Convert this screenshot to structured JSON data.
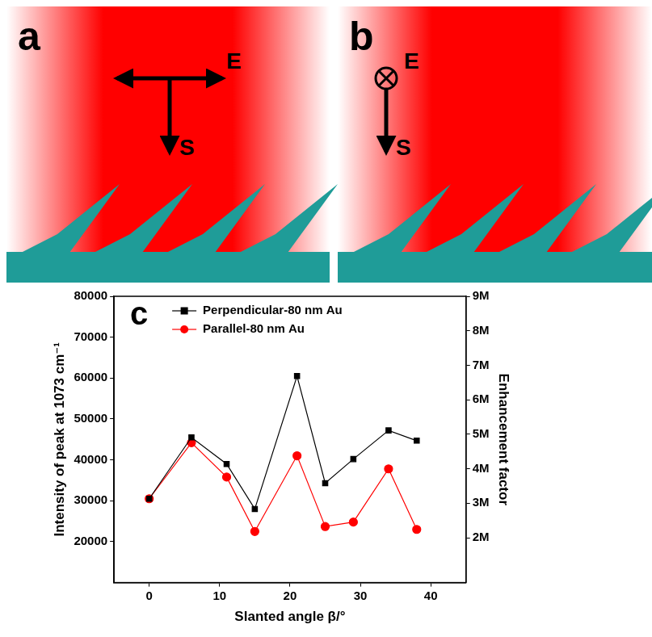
{
  "diagrams": [
    {
      "letter": "a",
      "field_label": "E",
      "beam_label": "S",
      "field": "in plane"
    },
    {
      "letter": "b",
      "field_label": "E",
      "beam_label": "S",
      "field": "out of plane"
    }
  ],
  "chart_data": {
    "type": "line",
    "annotations": [
      {
        "text": "c"
      }
    ],
    "x_label": "Slanted angle β/°",
    "y_label": "Intensity of peak at 1073 cm⁻¹",
    "y2_label": "Enhancement factor",
    "x": [
      0,
      6,
      11,
      15,
      21,
      25,
      29,
      34,
      38
    ],
    "series": [
      {
        "name": "Perpendicular-80 nm Au",
        "color": "#000000",
        "marker": "square",
        "values": [
          30500,
          45500,
          39000,
          28000,
          60500,
          34300,
          40200,
          47200,
          44700
        ]
      },
      {
        "name": "Parallel-80 nm Au",
        "color": "#ff0000",
        "marker": "circle",
        "values": [
          30500,
          44200,
          35800,
          22500,
          41000,
          23700,
          24800,
          37800,
          23000
        ]
      }
    ],
    "xlim": [
      -5,
      45
    ],
    "xticks": [
      0,
      10,
      20,
      30,
      40
    ],
    "ylim": [
      10000,
      80000
    ],
    "yticks": [
      20000,
      30000,
      40000,
      50000,
      60000,
      70000,
      80000
    ],
    "y2lim": [
      700000,
      9000000
    ],
    "y2ticks": [
      {
        "value": 2000000,
        "label": "2M"
      },
      {
        "value": 3000000,
        "label": "3M"
      },
      {
        "value": 4000000,
        "label": "4M"
      },
      {
        "value": 5000000,
        "label": "5M"
      },
      {
        "value": 6000000,
        "label": "6M"
      },
      {
        "value": 7000000,
        "label": "7M"
      },
      {
        "value": 8000000,
        "label": "8M"
      },
      {
        "value": 9000000,
        "label": "9M"
      }
    ],
    "legend": "upper left",
    "grid": false
  }
}
